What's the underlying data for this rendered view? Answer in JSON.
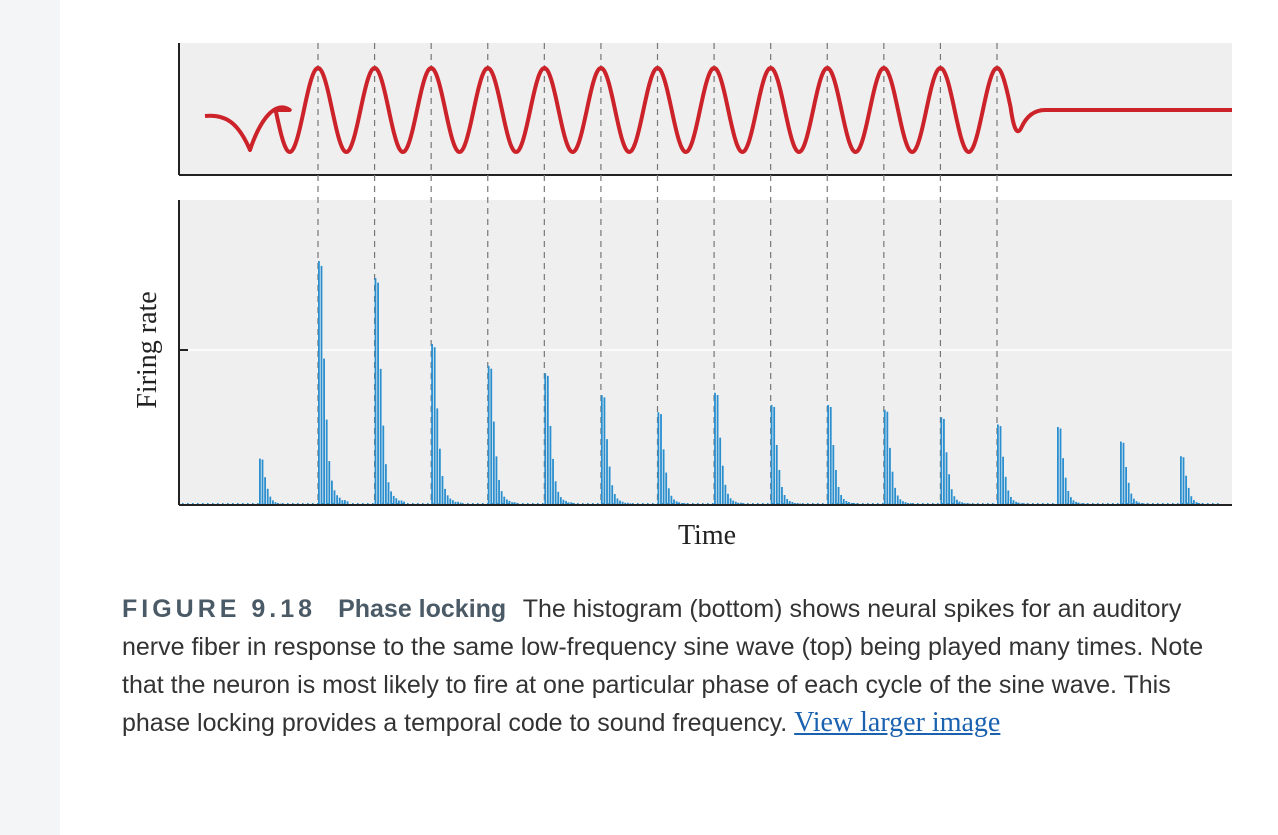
{
  "figure": {
    "number": "FIGURE 9.18",
    "title": "Phase locking",
    "text": "The histogram (bottom) shows neural spikes for an auditory nerve fiber in response to the same low-frequency sine wave (top) being played many times. Note that the neuron is most likely to fire at one particular phase of each cycle of the sine wave. This phase locking provides a temporal code to sound frequency.",
    "link_label": "View larger image"
  },
  "colors": {
    "panel_bg": "#efefef",
    "wave": "#cc2229",
    "bars": "#2a8fcf",
    "axis": "#222222",
    "dashed": "#777777"
  },
  "chart_data": [
    {
      "type": "line",
      "panel": "stimulus",
      "xlabel": "",
      "ylabel": "",
      "grid": false,
      "cycles": 13,
      "series": [
        {
          "x": [
            0,
            0.06,
            0.5,
            13.5,
            13.65,
            14.0,
            18.5
          ],
          "y": [
            0.05,
            0.05,
            -0.4,
            1,
            -1,
            0,
            0
          ]
        }
      ]
    },
    {
      "type": "bar",
      "panel": "histogram",
      "xlabel": "Time",
      "ylabel": "Firing rate",
      "grid": true,
      "ylim": [
        0,
        1
      ],
      "peak_heights": [
        0.19,
        1.0,
        0.93,
        0.66,
        0.57,
        0.54,
        0.45,
        0.38,
        0.46,
        0.41,
        0.41,
        0.39,
        0.36,
        0.33,
        0.32,
        0.26
      ],
      "burst_width": 0.5
    }
  ]
}
